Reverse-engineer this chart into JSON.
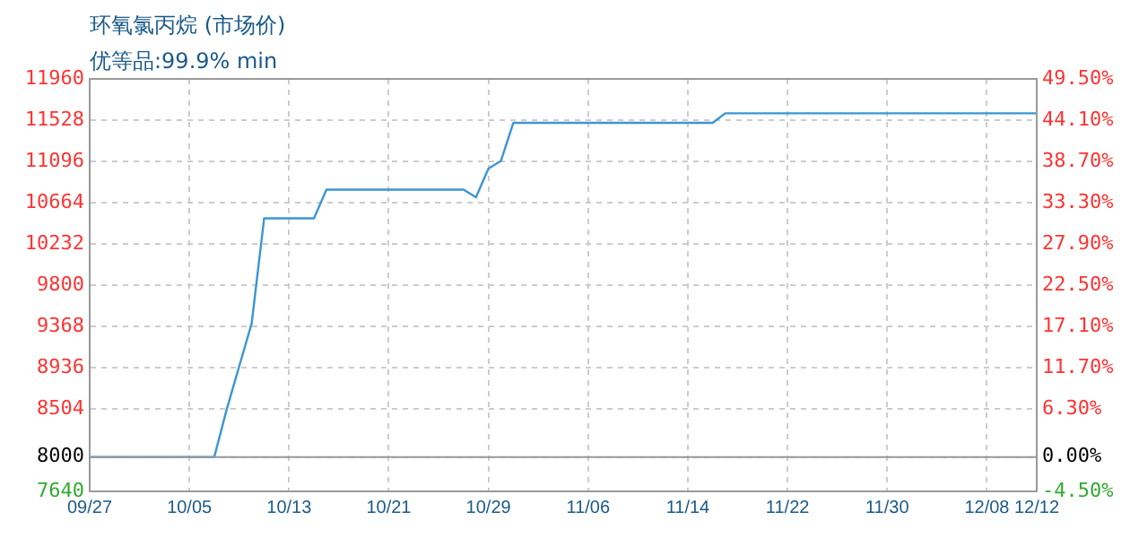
{
  "chart_data": {
    "type": "line",
    "title": "环氧氯丙烷 (市场价)",
    "subtitle": "优等品:99.9% min",
    "x": [
      "--09-27",
      "--10-07",
      "--10-08",
      "--10-09",
      "--10-10",
      "--10-11",
      "--10-15",
      "--10-16",
      "--10-27",
      "--10-28",
      "--10-29",
      "--10-30",
      "--10-31",
      "--11-16",
      "--11-17",
      "--12-12"
    ],
    "series": [
      {
        "color": "#3b95d3",
        "values": [
          8000,
          8000,
          8500,
          8950,
          9400,
          10500,
          10500,
          10800,
          10800,
          10720,
          11020,
          11100,
          11500,
          11500,
          11600,
          11600
        ]
      }
    ],
    "xlim": [
      "--09-27",
      "--12-12"
    ],
    "xticks": [
      {
        "value": "--09-27",
        "label": "09/27"
      },
      {
        "value": "--10-05",
        "label": "10/05"
      },
      {
        "value": "--10-13",
        "label": "10/13"
      },
      {
        "value": "--10-21",
        "label": "10/21"
      },
      {
        "value": "--10-29",
        "label": "10/29"
      },
      {
        "value": "--11-06",
        "label": "11/06"
      },
      {
        "value": "--11-14",
        "label": "11/14"
      },
      {
        "value": "--11-22",
        "label": "11/22"
      },
      {
        "value": "--11-30",
        "label": "11/30"
      },
      {
        "value": "--12-08",
        "label": "12/08"
      },
      {
        "value": "--12-12",
        "label": "12/12"
      }
    ],
    "ylim": [
      7640,
      11960
    ],
    "yticks": [
      7640,
      8000,
      8504,
      8936,
      9368,
      9800,
      10232,
      10664,
      11096,
      11528,
      11960
    ],
    "y2lim": [
      -4.5,
      49.5
    ],
    "y2ticks": [
      {
        "value": -4.5,
        "label": "-4.50%"
      },
      {
        "value": 0,
        "label": "0.00%"
      },
      {
        "value": 6.3,
        "label": "6.30%"
      },
      {
        "value": 11.7,
        "label": "11.70%"
      },
      {
        "value": 17.1,
        "label": "17.10%"
      },
      {
        "value": 22.5,
        "label": "22.50%"
      },
      {
        "value": 27.9,
        "label": "27.90%"
      },
      {
        "value": 33.3,
        "label": "33.30%"
      },
      {
        "value": 38.7,
        "label": "38.70%"
      },
      {
        "value": 44.1,
        "label": "44.10%"
      },
      {
        "value": 49.5,
        "label": "49.50%"
      }
    ],
    "ref_lines": [
      {
        "axis": "y",
        "value": 8000,
        "color": "#999999"
      }
    ],
    "grid": true,
    "marker": "none",
    "line_style": "solid"
  }
}
